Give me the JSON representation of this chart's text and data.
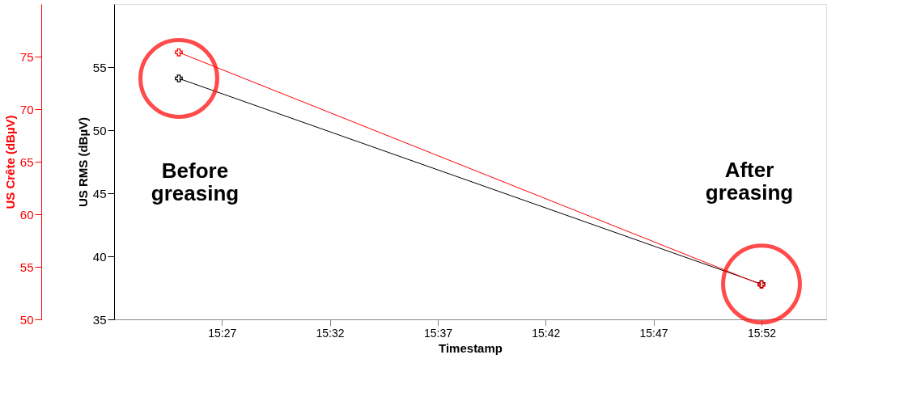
{
  "chart_data": {
    "type": "line",
    "xlabel": "Timestamp",
    "ylabel": "US RMS (dBµV)",
    "y2label": "US Crête (dBµV)",
    "x": [
      15.4167,
      15.8667
    ],
    "series": [
      {
        "name": null,
        "color": "#000000",
        "values": [
          54.1,
          37.8
        ]
      },
      {
        "name": null,
        "color": "#ff0000",
        "values": [
          75.4,
          53.3
        ],
        "axis": "y2"
      }
    ],
    "xlim": [
      15.3667,
      15.9167
    ],
    "xticks": [
      {
        "value": 15.45,
        "label": "15:27"
      },
      {
        "value": 15.5333,
        "label": "15:32"
      },
      {
        "value": 15.6167,
        "label": "15:37"
      },
      {
        "value": 15.7,
        "label": "15:42"
      },
      {
        "value": 15.7833,
        "label": "15:47"
      },
      {
        "value": 15.8667,
        "label": "15:52"
      }
    ],
    "ylim": [
      35,
      60
    ],
    "yticks": [
      35,
      40,
      45,
      50,
      55
    ],
    "y2lim": [
      50,
      80
    ],
    "y2ticks": [
      50,
      55,
      60,
      65,
      70,
      75
    ],
    "annotations": [
      "Before greasing",
      "After greasing"
    ],
    "marker": "cross",
    "line_style": "solid",
    "grid": false
  }
}
